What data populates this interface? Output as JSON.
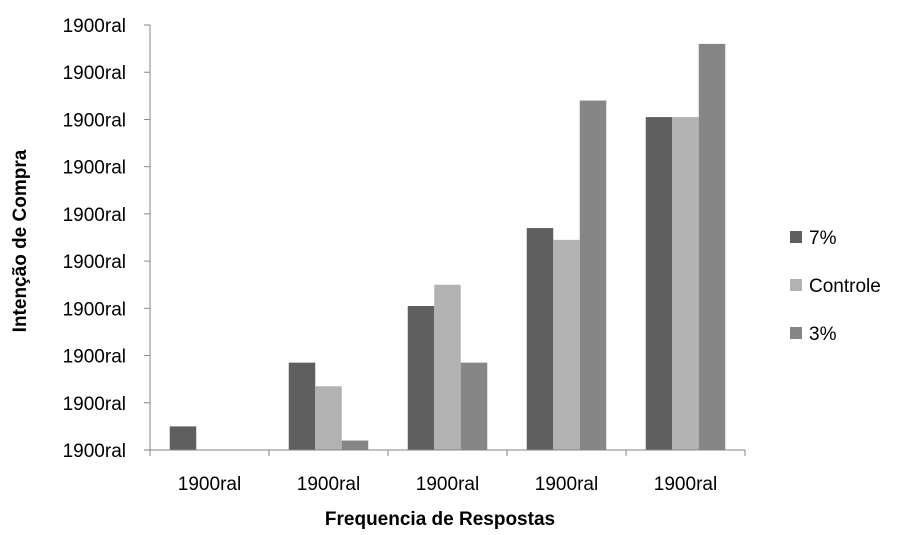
{
  "chart_data": {
    "type": "bar",
    "title": "",
    "xlabel": "Frequencia de Respostas",
    "ylabel": "Intenção de Compra",
    "categories": [
      "1900ral",
      "1900ral",
      "1900ral",
      "1900ral",
      "1900ral"
    ],
    "y_tick_labels": [
      "1900ral",
      "1900ral",
      "1900ral",
      "1900ral",
      "1900ral",
      "1900ral",
      "1900ral",
      "1900ral",
      "1900ral",
      "1900ral"
    ],
    "ylim": [
      0,
      9
    ],
    "grid": false,
    "legend_position": "right",
    "series": [
      {
        "name": "7%",
        "color": "#5f5f5f",
        "values": [
          0.5,
          1.85,
          3.05,
          4.7,
          7.05
        ]
      },
      {
        "name": "Controle",
        "color": "#b2b2b2",
        "values": [
          0,
          1.35,
          3.5,
          4.45,
          7.05
        ]
      },
      {
        "name": "3%",
        "color": "#868686",
        "values": [
          0,
          0.2,
          1.85,
          7.4,
          8.6
        ]
      }
    ]
  }
}
